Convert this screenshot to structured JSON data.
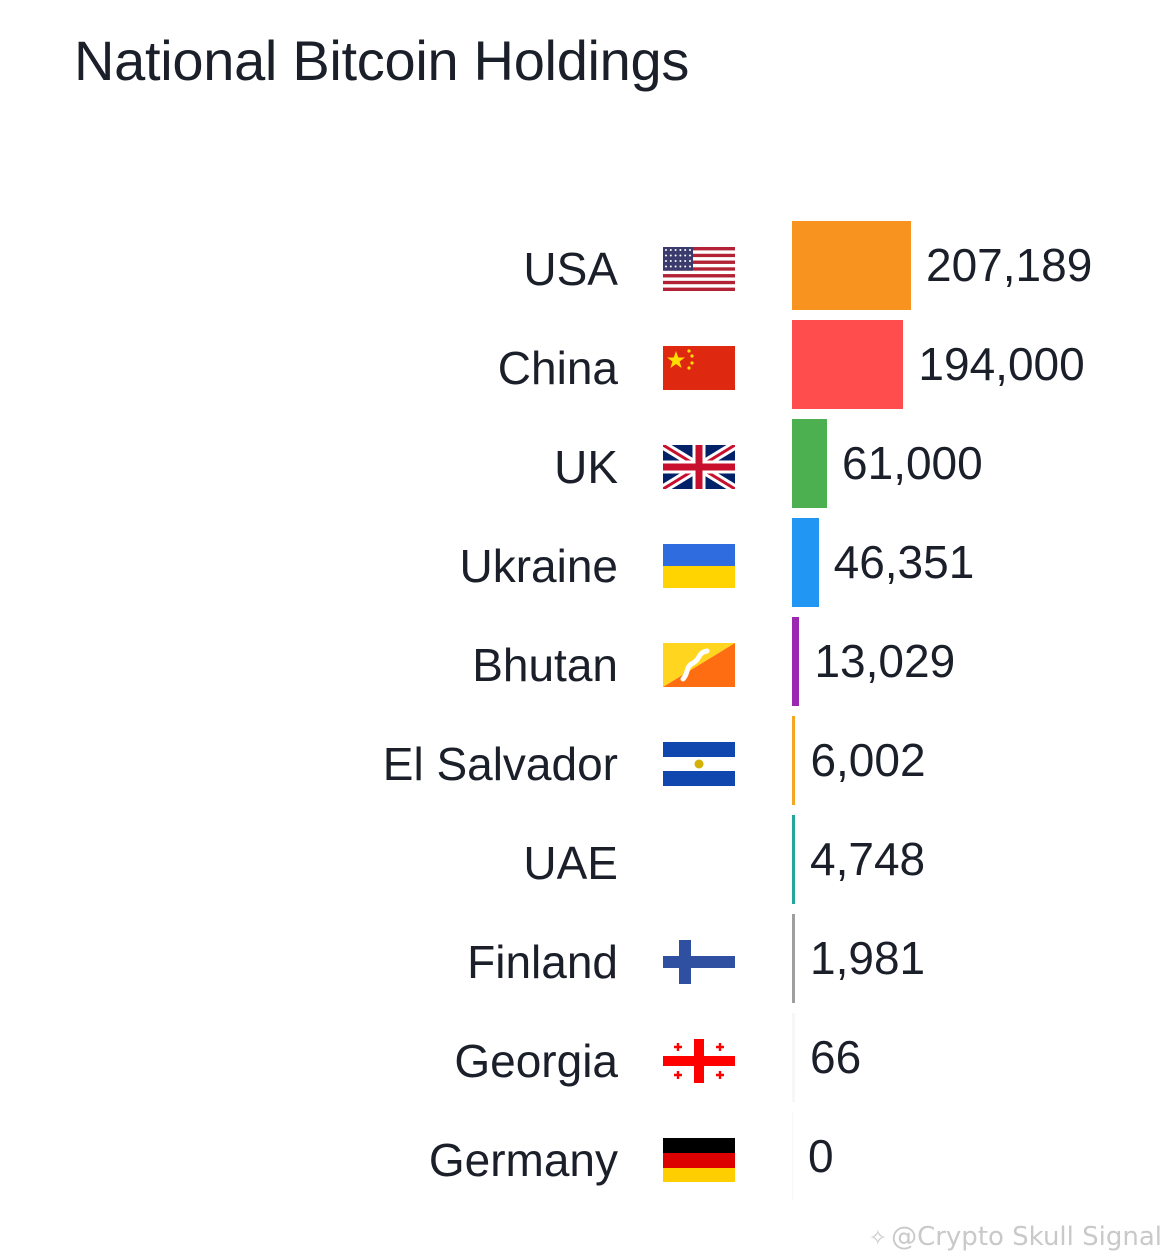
{
  "chart_data": {
    "type": "bar",
    "orientation": "horizontal",
    "title": "National Bitcoin Holdings",
    "categories": [
      "USA",
      "China",
      "UK",
      "Ukraine",
      "Bhutan",
      "El Salvador",
      "UAE",
      "Finland",
      "Georgia",
      "Germany"
    ],
    "values": [
      207189,
      194000,
      61000,
      46351,
      13029,
      6002,
      4748,
      1981,
      66,
      0
    ],
    "value_labels": [
      "207,189",
      "194,000",
      "61,000",
      "46,351",
      "13,029",
      "6,002",
      "4,748",
      "1,981",
      "66",
      "0"
    ],
    "colors": [
      "#f7931e",
      "#ff4d4d",
      "#4caf50",
      "#2196f3",
      "#9c27b0",
      "#f5a623",
      "#26a69a",
      "#9e9e9e",
      "#cccccc",
      "#cccccc"
    ],
    "flags": [
      "us-flag-icon",
      "china-flag-icon",
      "uk-flag-icon",
      "ukraine-flag-icon",
      "bhutan-flag-icon",
      "el-salvador-flag-icon",
      "",
      "finland-flag-icon",
      "georgia-flag-icon",
      "germany-flag-icon"
    ],
    "xlim": [
      0,
      207189
    ],
    "grid": false,
    "legend": "none"
  },
  "watermark": {
    "text": "@Crypto Skull Signal",
    "icon": "crypto-skull-icon"
  }
}
